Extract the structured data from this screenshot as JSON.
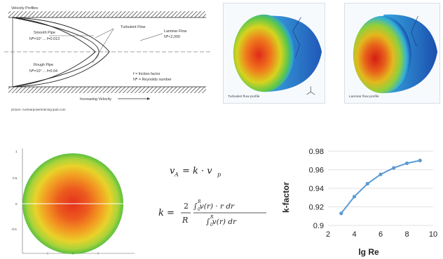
{
  "pipe_diagram": {
    "title": "Velocity Profiles",
    "smooth_pipe": "Smooth Pipe",
    "smooth_formula": "Nᴿ=10⁷ ... f=0.013",
    "rough_pipe": "Rough Pipe",
    "rough_formula": "Nᴿ=10⁷ ... f=0.04",
    "turbulent": "Turbulent Flow",
    "laminar": "Laminar Flow",
    "laminar_condition": "Nᴿ<2,000",
    "friction_legend": "f  =  friction factor",
    "reynolds_legend": "Nᴿ =  Reynolds number",
    "axis": "Increasing Velocity",
    "source": "picture: nuclearpowertraining.tpub.com"
  },
  "cfd": {
    "turbulent_caption": "Turbulent flow profile",
    "laminar_caption": "Laminar flow profile"
  },
  "circle_plot": {
    "y_ticks": [
      "1",
      "0.5",
      "0",
      "-0.5"
    ]
  },
  "formulas": {
    "v_a": "v",
    "a_sub": "A",
    "eq1": "= k · v",
    "p_sub": "p",
    "k": "k =",
    "two": "2",
    "R": "R",
    "num_body": "∫ v(r) · r dr",
    "den_body": "∫ v(r) dr",
    "int_upper": "R",
    "int_lower": "0"
  },
  "chart_data": {
    "type": "line",
    "title": "",
    "xlabel": "lg Re",
    "ylabel": "k-factor",
    "xlim": [
      2,
      10
    ],
    "ylim": [
      0.9,
      0.98
    ],
    "x_ticks": [
      "2",
      "4",
      "6",
      "8",
      "10"
    ],
    "y_ticks": [
      "0.9",
      "0.92",
      "0.94",
      "0.96",
      "0.98"
    ],
    "grid": "horizontal",
    "series": [
      {
        "x": [
          3,
          4,
          5,
          6,
          7,
          8,
          9
        ],
        "y": [
          0.913,
          0.931,
          0.945,
          0.955,
          0.962,
          0.967,
          0.97
        ]
      }
    ],
    "color": "#5b9bd5"
  }
}
